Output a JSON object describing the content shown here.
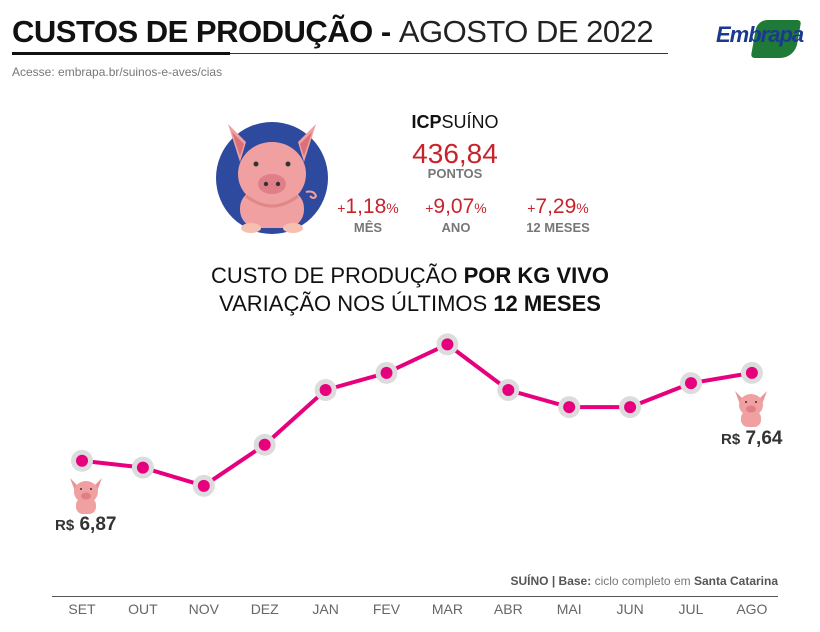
{
  "header": {
    "title_bold": "CUSTOS DE PRODUÇÃO -",
    "title_light": "AGOSTO DE 2022",
    "url": "Acesse: embrapa.br/suinos-e-aves/cias",
    "logo_text": "Embrapa"
  },
  "icp": {
    "label_bold": "ICP",
    "label_light": "SUÍNO",
    "value": "436,84",
    "unit": "PONTOS",
    "variations": [
      {
        "sign": "+",
        "value": "1,18",
        "pct": "%",
        "label": "MÊS"
      },
      {
        "sign": "+",
        "value": "9,07",
        "pct": "%",
        "label": "ANO"
      },
      {
        "sign": "+",
        "value": "7,29",
        "pct": "%",
        "label": "12 MESES"
      }
    ]
  },
  "chart_data": {
    "type": "line",
    "title_line1_light": "CUSTO DE PRODUÇÃO",
    "title_line1_bold": "POR KG VIVO",
    "title_line2_light": "VARIAÇÃO NOS ÚLTIMOS",
    "title_line2_bold": "12 MESES",
    "categories": [
      "SET",
      "OUT",
      "NOV",
      "DEZ",
      "JAN",
      "FEV",
      "MAR",
      "ABR",
      "MAI",
      "JUN",
      "JUL",
      "AGO"
    ],
    "series": [
      {
        "name": "Custo por kg vivo (R$)",
        "values": [
          6.87,
          6.81,
          6.65,
          7.01,
          7.49,
          7.64,
          7.89,
          7.49,
          7.34,
          7.34,
          7.55,
          7.64
        ]
      }
    ],
    "ylim": [
      6.0,
      8.2
    ],
    "grid": false,
    "annotations": [
      {
        "currency": "R$",
        "value": "6,87",
        "category": "SET"
      },
      {
        "currency": "R$",
        "value": "7,64",
        "category": "AGO"
      }
    ],
    "line_color": "#e6007e",
    "xlabel": "",
    "ylabel": ""
  },
  "footer": {
    "note_bold1": "SUÍNO | Base:",
    "note_light": "ciclo completo em",
    "note_bold2": "Santa Catarina"
  }
}
